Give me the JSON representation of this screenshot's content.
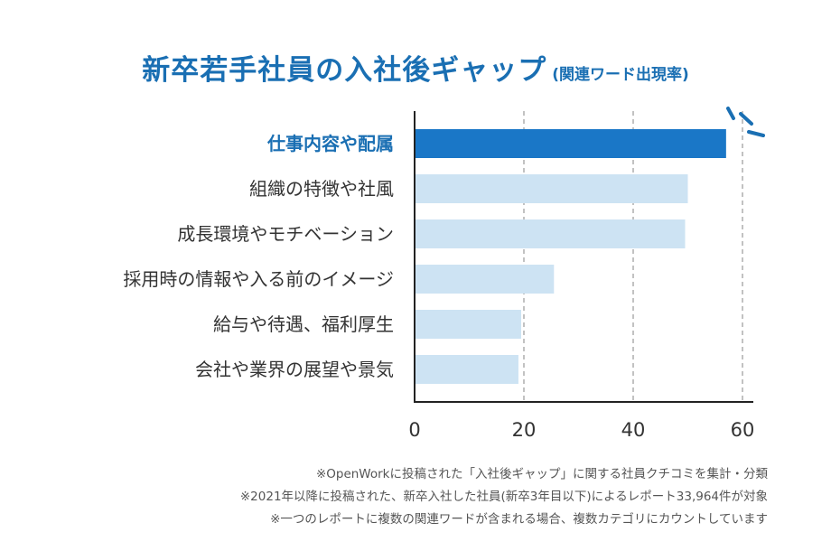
{
  "header": {
    "title": "新卒若手社員の入社後ギャップ",
    "subtitle": "(関連ワード出現率)"
  },
  "chart_data": {
    "type": "bar",
    "orientation": "horizontal",
    "title": "新卒若手社員の入社後ギャップ",
    "subtitle": "(関連ワード出現率)",
    "categories": [
      "仕事内容や配属",
      "組織の特徴や社風",
      "成長環境やモチベーション",
      "採用時の情報や入る前のイメージ",
      "給与や待遇、福利厚生",
      "会社や業界の展望や景気"
    ],
    "values": [
      57,
      50,
      49.5,
      25.5,
      19.5,
      19
    ],
    "highlight_index": 0,
    "xlim": [
      0,
      60
    ],
    "xticks": [
      "0",
      "20",
      "40",
      "60"
    ],
    "grid": "vertical dashed",
    "colors": {
      "highlight": "#1a77c7",
      "normal": "#cde3f3",
      "accent": "#1a6fb3"
    }
  },
  "notes": [
    "※OpenWorkに投稿された「入社後ギャップ」に関する社員クチコミを集計・分類",
    "※2021年以降に投稿された、新卒入社した社員(新卒3年目以下)によるレポート33,964件が対象",
    "※一つのレポートに複数の関連ワードが含まれる場合、複数カテゴリにカウントしています"
  ]
}
